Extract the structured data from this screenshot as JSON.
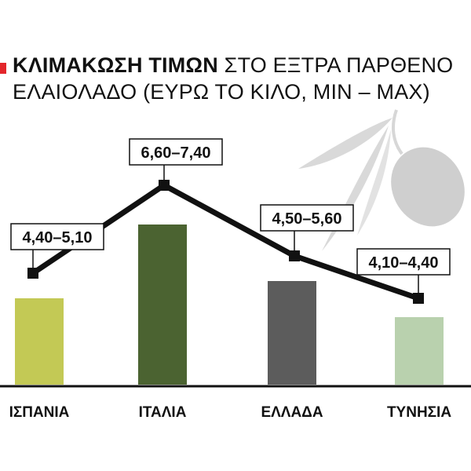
{
  "title": {
    "bold": "ΚΛΙΜΑΚΩΣΗ ΤΙΜΩΝ",
    "rest": " ΣΤΟ ΕΞΤΡΑ ΠΑΡΘΕΝΟ",
    "line2": "ΕΛΑΙΟΛΑΔΟ (ΕΥΡΩ ΤΟ ΚΙΛΟ, MIN – MAX)"
  },
  "colors": {
    "accent": "#e3262b",
    "line": "#111111",
    "axis": "#111111"
  },
  "chart_data": {
    "type": "bar",
    "categories": [
      "ΙΣΠΑΝΙΑ",
      "ΙΤΑΛΙΑ",
      "ΕΛΛΑΔΑ",
      "ΤΥΝΗΣΙΑ"
    ],
    "series": [
      {
        "values": [
          5.1,
          7.4,
          5.6,
          4.4
        ]
      }
    ],
    "ranges": [
      {
        "min": 4.4,
        "max": 5.1,
        "label": "4,40–5,10"
      },
      {
        "min": 6.6,
        "max": 7.4,
        "label": "6,60–7,40"
      },
      {
        "min": 4.5,
        "max": 5.6,
        "label": "4,50–5,60"
      },
      {
        "min": 4.1,
        "max": 4.4,
        "label": "4,10–4,40"
      }
    ],
    "bar_colors": [
      "#c3c955",
      "#4b6331",
      "#5c5c5c",
      "#b9d1ae"
    ],
    "overlay": "line connecting range markers",
    "title": "ΚΛΙΜΑΚΩΣΗ ΤΙΜΩΝ ΣΤΟ ΕΞΤΡΑ ΠΑΡΘΕΝΟ ΕΛΑΙΟΛΑΔΟ (ΕΥΡΩ ΤΟ ΚΙΛΟ, MIN – MAX)",
    "xlabel": "",
    "ylabel": "",
    "ylim": [
      0,
      9
    ],
    "grid": false,
    "legend": "none"
  }
}
